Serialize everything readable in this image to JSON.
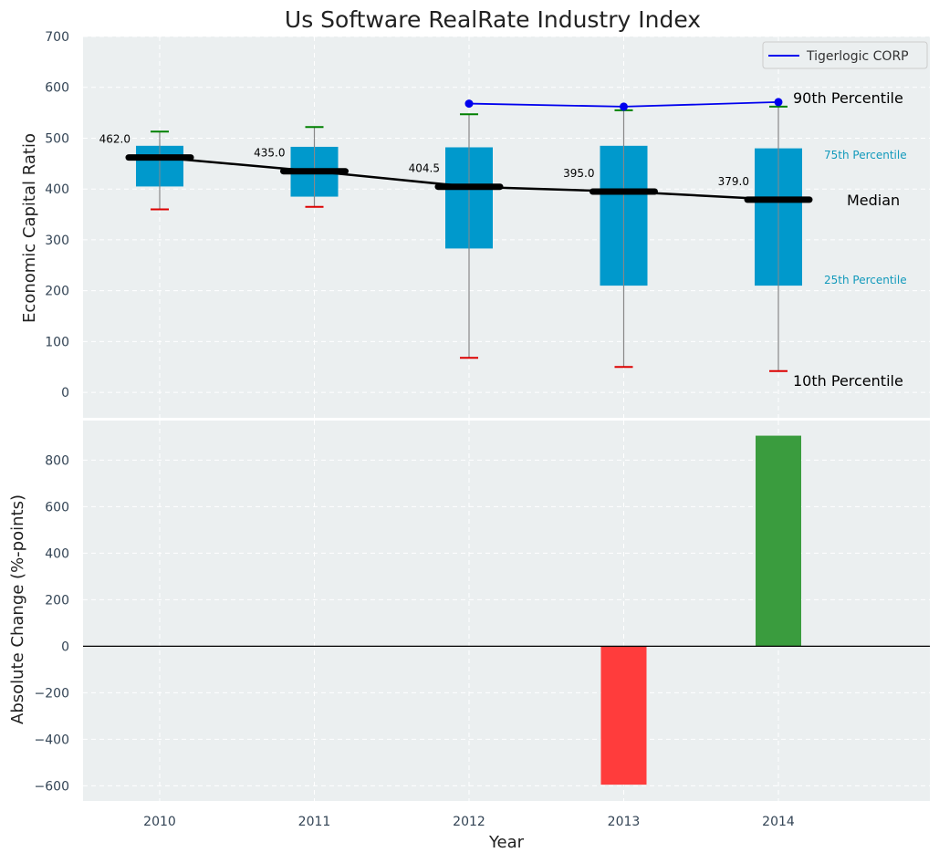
{
  "chart_data": [
    {
      "type": "box",
      "title": "Us Software RealRate Industry Index",
      "xlabel": "",
      "ylabel": "Economic Capital Ratio",
      "ylim": [
        -50,
        700
      ],
      "yticks": [
        0,
        100,
        200,
        300,
        400,
        500,
        600,
        700
      ],
      "categories": [
        "2010",
        "2011",
        "2012",
        "2013",
        "2014"
      ],
      "grid": true,
      "boxes": [
        {
          "year": "2010",
          "p10": 360,
          "p25": 405,
          "median": 462,
          "p75": 485,
          "p90": 513
        },
        {
          "year": "2011",
          "p10": 365,
          "p25": 385,
          "median": 435,
          "p75": 483,
          "p90": 522
        },
        {
          "year": "2012",
          "p10": 68,
          "p25": 283,
          "median": 404.5,
          "p75": 482,
          "p90": 547
        },
        {
          "year": "2013",
          "p10": 50,
          "p25": 210,
          "median": 395,
          "p75": 485,
          "p90": 555
        },
        {
          "year": "2014",
          "p10": 42,
          "p25": 210,
          "median": 379,
          "p75": 480,
          "p90": 562
        }
      ],
      "median_labels": [
        "462.0",
        "435.0",
        "404.5",
        "395.0",
        "379.0"
      ],
      "series": [
        {
          "name": "Tigerlogic CORP",
          "x": [
            "2012",
            "2013",
            "2014"
          ],
          "values": [
            568,
            562,
            571
          ],
          "color": "#0000ee"
        }
      ],
      "legend": {
        "placement": "top-right",
        "label": "Tigerlogic CORP"
      },
      "annotations": {
        "p90": "90th Percentile",
        "p75": "75th Percentile",
        "median": "Median",
        "p25": "25th Percentile",
        "p10": "10th Percentile"
      }
    },
    {
      "type": "bar",
      "xlabel": "Year",
      "ylabel": "Absolute Change (%-points)",
      "ylim": [
        -665,
        970
      ],
      "yticks": [
        -600,
        -400,
        -200,
        0,
        200,
        400,
        600,
        800
      ],
      "categories": [
        "2010",
        "2011",
        "2012",
        "2013",
        "2014"
      ],
      "values": [
        null,
        null,
        null,
        -595,
        905
      ],
      "grid": true
    }
  ],
  "colors": {
    "background": "#ebeff0",
    "box": "#0099cc",
    "whisker": "#888888",
    "p90_cap": "#008000",
    "p10_cap": "#dd0000",
    "median": "#000000",
    "company": "#0000ee",
    "bar_positive": "#3a9c3e",
    "bar_negative": "#ff3c3c",
    "annotation_blue": "#1199bb",
    "tick": "#334455",
    "grid": "#ffffff"
  }
}
